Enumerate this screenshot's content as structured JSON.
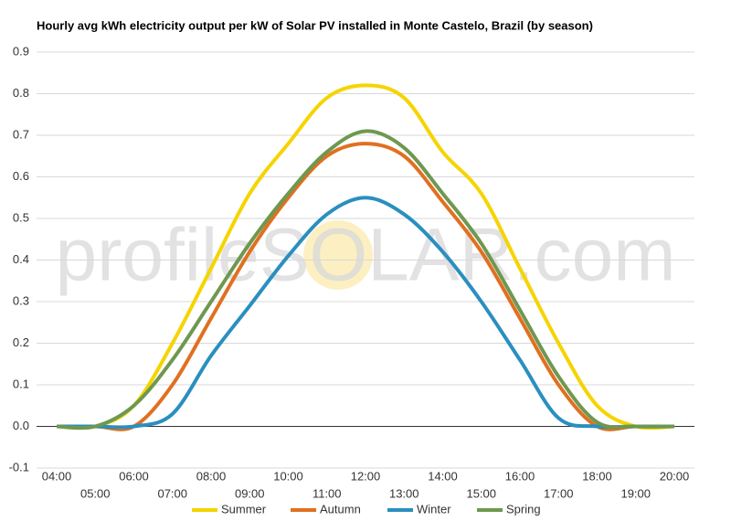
{
  "chart_data": {
    "type": "line",
    "title": "Hourly avg kWh electricity output per kW of Solar PV installed in Monte Castelo, Brazil (by season)",
    "watermark": "profileSOLAR.com",
    "categories": [
      "04:00",
      "05:00",
      "06:00",
      "07:00",
      "08:00",
      "09:00",
      "10:00",
      "11:00",
      "12:00",
      "13:00",
      "14:00",
      "15:00",
      "16:00",
      "17:00",
      "18:00",
      "19:00",
      "20:00"
    ],
    "series": [
      {
        "name": "Summer",
        "color": "#f5d400",
        "values": [
          0,
          0,
          0.05,
          0.2,
          0.38,
          0.56,
          0.68,
          0.79,
          0.82,
          0.79,
          0.66,
          0.56,
          0.38,
          0.2,
          0.05,
          0,
          0
        ]
      },
      {
        "name": "Autumn",
        "color": "#e07020",
        "values": [
          0,
          0,
          0,
          0.1,
          0.26,
          0.42,
          0.55,
          0.65,
          0.68,
          0.65,
          0.54,
          0.42,
          0.26,
          0.1,
          0,
          0,
          0
        ]
      },
      {
        "name": "Winter",
        "color": "#2a8fbf",
        "values": [
          0,
          0,
          0,
          0.03,
          0.17,
          0.29,
          0.41,
          0.51,
          0.55,
          0.51,
          0.42,
          0.3,
          0.16,
          0.02,
          0,
          0,
          0
        ]
      },
      {
        "name": "Spring",
        "color": "#6e9850",
        "values": [
          0,
          0,
          0.05,
          0.16,
          0.3,
          0.44,
          0.56,
          0.66,
          0.71,
          0.67,
          0.56,
          0.44,
          0.28,
          0.12,
          0.01,
          0,
          0
        ]
      }
    ],
    "ylim": [
      -0.1,
      0.9
    ],
    "yticks": [
      -0.1,
      {
        "value": 0,
        "label": "0.0"
      },
      0.1,
      0.2,
      0.3,
      0.4,
      0.5,
      0.6,
      0.7,
      0.8,
      0.9
    ],
    "grid": true,
    "legend": "bottom"
  }
}
